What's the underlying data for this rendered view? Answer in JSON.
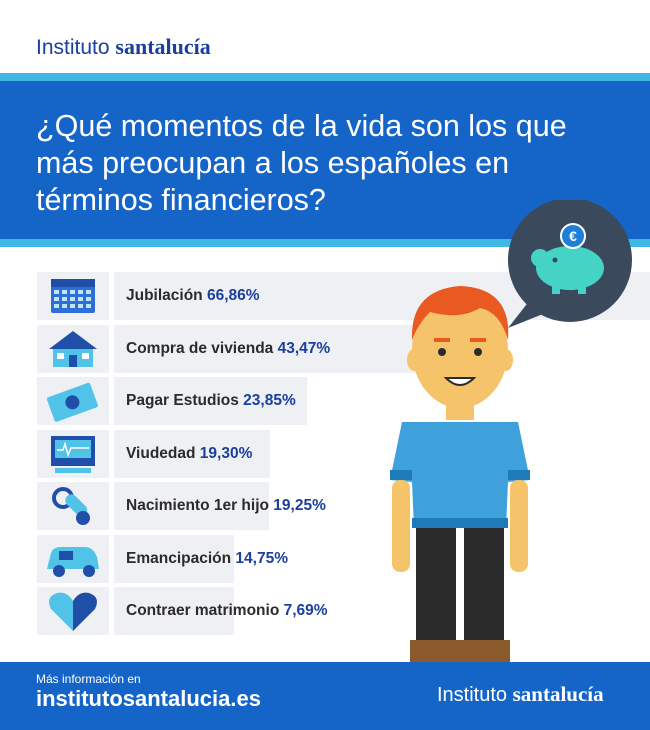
{
  "brand": {
    "light": "Instituto",
    "bold": "santalucía"
  },
  "title": "¿Qué momentos de la vida son los que más preocupan a los españoles en términos financieros?",
  "colors": {
    "header": "#1565c8",
    "accent": "#3fb8e6",
    "bar": "#eef0f3",
    "value": "#1a3f9c"
  },
  "chart_data": {
    "type": "bar",
    "title": "¿Qué momentos de la vida son los que más preocupan a los españoles en términos financieros?",
    "categories": [
      "Jubilación",
      "Compra de vivienda",
      "Pagar Estudios",
      "Viudedad",
      "Nacimiento 1er hijo",
      "Emancipación",
      "Contraer matrimonio"
    ],
    "values": [
      66.86,
      43.47,
      23.85,
      19.3,
      19.25,
      14.75,
      7.69
    ],
    "value_labels": [
      "66,86%",
      "43,47%",
      "23,85%",
      "19,30%",
      "19,25%",
      "14,75%",
      "7,69%"
    ],
    "icons": [
      "calendar-icon",
      "house-icon",
      "money-icon",
      "monitor-icon",
      "pacifier-icon",
      "car-icon",
      "heart-icon"
    ],
    "orientation": "horizontal"
  },
  "footer": {
    "more_info": "Más información en",
    "url": "institutosantalucia.es",
    "brand_light": "Instituto",
    "brand_bold": "santalucía"
  }
}
